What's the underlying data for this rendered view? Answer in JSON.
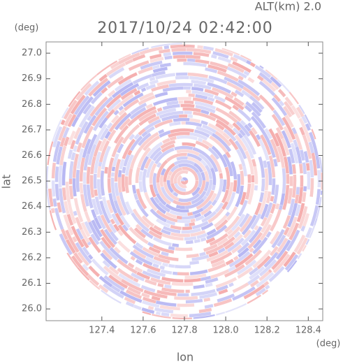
{
  "chart_data": {
    "type": "heatmap",
    "title": "2017/10/24 02:42:00",
    "subtitle": "ALT(km) 2.0",
    "x_label": "lon",
    "y_label": "lat",
    "x_unit": "(deg)",
    "y_unit": "(deg)",
    "xlim": [
      127.13,
      128.47
    ],
    "ylim": [
      25.954,
      27.044
    ],
    "xticks": [
      127.4,
      127.6,
      127.8,
      {
        "value": 128.0,
        "label": "128.0"
      },
      128.2,
      128.4
    ],
    "yticks": [
      {
        "value": 26.0,
        "label": "26.0"
      },
      26.1,
      26.2,
      26.3,
      26.4,
      26.5,
      26.6,
      26.7,
      26.8,
      26.9,
      {
        "value": 27.0,
        "label": "27.0"
      }
    ]
  }
}
